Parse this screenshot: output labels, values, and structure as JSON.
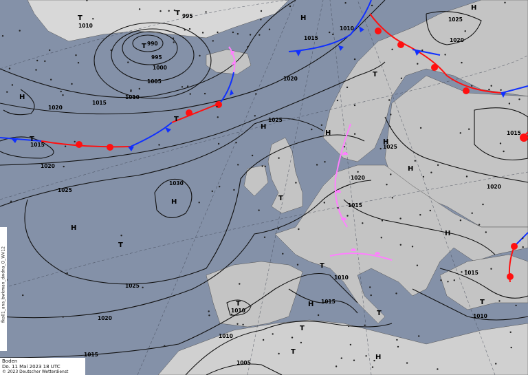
{
  "map": {
    "level": "Boden",
    "valid_time": "Do. 11 Mai 2023 18 UTC",
    "copyright": "© 2023 Deutscher Wetterdienst",
    "product_id": "fka01_ana_bwkman_dwdna_O_WV12",
    "colors": {
      "sea": "#8491a8",
      "land": "#c4c4c4",
      "highland": "#ececec",
      "cold_front": "#1030ff",
      "warm_front": "#ff1010",
      "occlusion": "#ff80ff",
      "isobar": "#111111"
    },
    "pressure_centers": [
      "T",
      "T",
      "T",
      "H",
      "T",
      "H",
      "H",
      "T",
      "T",
      "H",
      "H",
      "T",
      "H",
      "H",
      "T",
      "H",
      "H",
      "T",
      "T",
      "H",
      "T",
      "H",
      "T",
      "T",
      "H",
      "T"
    ],
    "isobar_labels": [
      "1010",
      "995",
      "990",
      "995",
      "1000",
      "1005",
      "1010",
      "1015",
      "1020",
      "1015",
      "1020",
      "1025",
      "1030",
      "1025",
      "1020",
      "1015",
      "1010",
      "1005",
      "1020",
      "1025",
      "1015",
      "1010",
      "1025",
      "1020",
      "1015",
      "1025",
      "1020",
      "1015",
      "1020",
      "1015",
      "1010",
      "1010",
      "1010",
      "1015"
    ]
  }
}
